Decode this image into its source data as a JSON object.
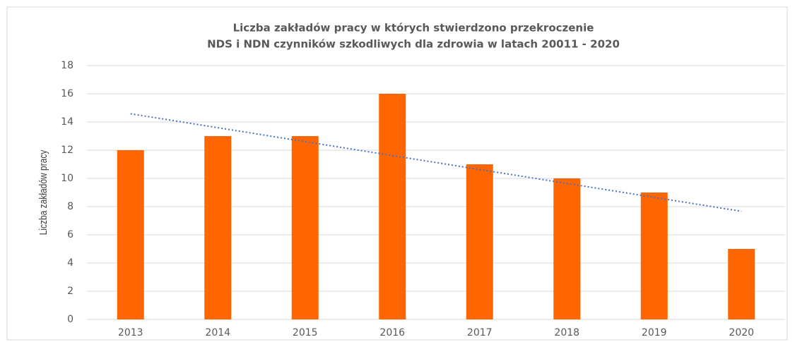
{
  "chart_data": {
    "type": "bar",
    "title": [
      "Liczba zakładów pracy w których stwierdzono przekroczenie",
      "NDS i NDN czynników szkodliwych dla zdrowia w latach 20011 - 2020"
    ],
    "y_label": "Liczba zakładów pracy",
    "categories": [
      "2013",
      "2014",
      "2015",
      "2016",
      "2017",
      "2018",
      "2019",
      "2020"
    ],
    "values": [
      12,
      13,
      13,
      16,
      11,
      10,
      9,
      5
    ],
    "color": "#ff6600",
    "trendline": {
      "type": "linear",
      "color": "#4472c4"
    },
    "ylim": [
      0,
      18
    ],
    "yticks": [
      0,
      2,
      4,
      6,
      8,
      10,
      12,
      14,
      16,
      18
    ],
    "grid": true
  }
}
